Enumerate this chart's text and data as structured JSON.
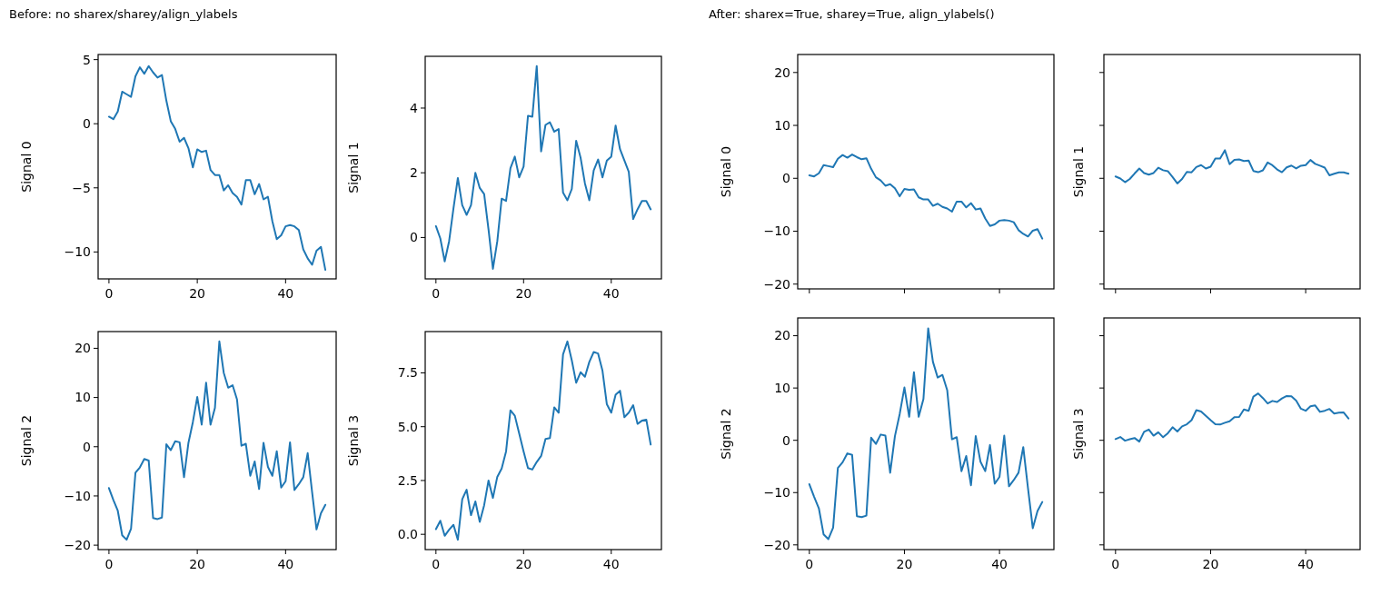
{
  "chart_data": [
    {
      "type": "line",
      "title": "Before: no sharex/sharey/align_ylabels",
      "ylabel": "Signal 0",
      "x": [
        0,
        1,
        2,
        3,
        4,
        5,
        6,
        7,
        8,
        9,
        10,
        11,
        12,
        13,
        14,
        15,
        16,
        17,
        18,
        19,
        20,
        21,
        22,
        23,
        24,
        25,
        26,
        27,
        28,
        29,
        30,
        31,
        32,
        33,
        34,
        35,
        36,
        37,
        38,
        39,
        40,
        41,
        42,
        43,
        44,
        45,
        46,
        47,
        48,
        49
      ],
      "xlim": [
        -2.45,
        51.45
      ],
      "xticks": [
        0,
        20,
        40
      ],
      "ylim": [
        -12.1,
        5.4
      ],
      "yticks": [
        {
          "value": -10,
          "label": "−10"
        },
        {
          "value": -5,
          "label": "−5"
        },
        0,
        5
      ],
      "series": [
        {
          "color": "#1f77b4",
          "values": [
            0.55,
            0.36,
            0.95,
            2.5,
            2.3,
            2.1,
            3.7,
            4.4,
            3.9,
            4.5,
            4.0,
            3.6,
            3.8,
            1.8,
            0.2,
            -0.4,
            -1.4,
            -1.1,
            -1.9,
            -3.4,
            -2.0,
            -2.2,
            -2.1,
            -3.6,
            -4.0,
            -4.0,
            -5.2,
            -4.8,
            -5.4,
            -5.7,
            -6.3,
            -4.4,
            -4.4,
            -5.5,
            -4.7,
            -5.9,
            -5.7,
            -7.6,
            -9.0,
            -8.7,
            -8.0,
            -7.9,
            -8.0,
            -8.3,
            -9.8,
            -10.5,
            -11.0,
            -9.9,
            -9.6,
            -11.4
          ]
        }
      ]
    },
    {
      "type": "line",
      "ylabel": "Signal 1",
      "x": [
        0,
        1,
        2,
        3,
        4,
        5,
        6,
        7,
        8,
        9,
        10,
        11,
        12,
        13,
        14,
        15,
        16,
        17,
        18,
        19,
        20,
        21,
        22,
        23,
        24,
        25,
        26,
        27,
        28,
        29,
        30,
        31,
        32,
        33,
        34,
        35,
        36,
        37,
        38,
        39,
        40,
        41,
        42,
        43,
        44,
        45,
        46,
        47,
        48,
        49
      ],
      "xlim": [
        -2.45,
        51.45
      ],
      "xticks": [
        0,
        20,
        40
      ],
      "ylim": [
        -1.28,
        5.6
      ],
      "yticks": [
        0,
        2,
        4
      ],
      "series": [
        {
          "color": "#1f77b4",
          "values": [
            0.35,
            -0.03,
            -0.74,
            -0.12,
            0.9,
            1.84,
            1.0,
            0.7,
            1.0,
            2.0,
            1.53,
            1.34,
            0.25,
            -0.97,
            -0.12,
            1.2,
            1.13,
            2.14,
            2.5,
            1.86,
            2.19,
            3.76,
            3.73,
            5.3,
            2.66,
            3.48,
            3.56,
            3.27,
            3.35,
            1.39,
            1.15,
            1.5,
            2.99,
            2.47,
            1.67,
            1.15,
            2.07,
            2.41,
            1.86,
            2.38,
            2.5,
            3.46,
            2.73,
            2.38,
            2.03,
            0.57,
            0.87,
            1.13,
            1.13,
            0.87
          ]
        }
      ]
    },
    {
      "type": "line",
      "ylabel": "Signal 2",
      "x": [
        0,
        1,
        2,
        3,
        4,
        5,
        6,
        7,
        8,
        9,
        10,
        11,
        12,
        13,
        14,
        15,
        16,
        17,
        18,
        19,
        20,
        21,
        22,
        23,
        24,
        25,
        26,
        27,
        28,
        29,
        30,
        31,
        32,
        33,
        34,
        35,
        36,
        37,
        38,
        39,
        40,
        41,
        42,
        43,
        44,
        45,
        46,
        47,
        48,
        49
      ],
      "xlim": [
        -2.45,
        51.45
      ],
      "xticks": [
        0,
        20,
        40
      ],
      "ylim": [
        -20.9,
        23.4
      ],
      "yticks": [
        {
          "value": -20,
          "label": "−20"
        },
        {
          "value": -10,
          "label": "−10"
        },
        0,
        10,
        20
      ],
      "series": [
        {
          "color": "#1f77b4",
          "values": [
            -8.4,
            -10.8,
            -13.0,
            -18.0,
            -18.9,
            -16.7,
            -5.3,
            -4.2,
            -2.5,
            -2.8,
            -14.5,
            -14.7,
            -14.4,
            0.5,
            -0.7,
            1.1,
            0.9,
            -6.2,
            0.8,
            5.0,
            10.1,
            4.5,
            13.0,
            4.5,
            7.9,
            21.4,
            15.0,
            12.0,
            12.5,
            9.6,
            0.2,
            0.6,
            -5.9,
            -3.0,
            -8.6,
            0.8,
            -4.1,
            -5.9,
            -0.9,
            -8.3,
            -7.0,
            0.9,
            -8.8,
            -7.6,
            -6.2,
            -1.3,
            -9.2,
            -16.8,
            -13.5,
            -11.8
          ]
        }
      ]
    },
    {
      "type": "line",
      "ylabel": "Signal 3",
      "x": [
        0,
        1,
        2,
        3,
        4,
        5,
        6,
        7,
        8,
        9,
        10,
        11,
        12,
        13,
        14,
        15,
        16,
        17,
        18,
        19,
        20,
        21,
        22,
        23,
        24,
        25,
        26,
        27,
        28,
        29,
        30,
        31,
        32,
        33,
        34,
        35,
        36,
        37,
        38,
        39,
        40,
        41,
        42,
        43,
        44,
        45,
        46,
        47,
        48,
        49
      ],
      "xlim": [
        -2.45,
        51.45
      ],
      "xticks": [
        0,
        20,
        40
      ],
      "ylim": [
        -0.71,
        9.42
      ],
      "yticks": [
        {
          "value": 0,
          "label": "0.0"
        },
        2.5,
        {
          "value": 5,
          "label": "5.0"
        },
        7.5
      ],
      "series": [
        {
          "color": "#1f77b4",
          "values": [
            0.24,
            0.63,
            -0.07,
            0.21,
            0.44,
            -0.25,
            1.63,
            2.07,
            0.89,
            1.53,
            0.58,
            1.35,
            2.5,
            1.69,
            2.67,
            3.06,
            3.85,
            5.76,
            5.51,
            4.68,
            3.85,
            3.08,
            3.01,
            3.36,
            3.64,
            4.43,
            4.47,
            5.9,
            5.65,
            8.36,
            8.96,
            8.08,
            7.04,
            7.53,
            7.32,
            8.01,
            8.47,
            8.4,
            7.6,
            6.04,
            5.65,
            6.49,
            6.67,
            5.44,
            5.65,
            6.0,
            5.13,
            5.28,
            5.33,
            4.17
          ]
        }
      ]
    },
    {
      "type": "line",
      "title": "After: sharex=True, sharey=True, align_ylabels()",
      "ylabel": "Signal 0",
      "tick_labels": "y",
      "x": [
        0,
        1,
        2,
        3,
        4,
        5,
        6,
        7,
        8,
        9,
        10,
        11,
        12,
        13,
        14,
        15,
        16,
        17,
        18,
        19,
        20,
        21,
        22,
        23,
        24,
        25,
        26,
        27,
        28,
        29,
        30,
        31,
        32,
        33,
        34,
        35,
        36,
        37,
        38,
        39,
        40,
        41,
        42,
        43,
        44,
        45,
        46,
        47,
        48,
        49
      ],
      "xlim": [
        -2.45,
        51.45
      ],
      "xticks": [
        0,
        20,
        40
      ],
      "ylim": [
        -20.9,
        23.4
      ],
      "yticks": [
        {
          "value": -20,
          "label": "−20"
        },
        {
          "value": -10,
          "label": "−10"
        },
        0,
        10,
        20
      ],
      "series": [
        {
          "color": "#1f77b4",
          "values": [
            0.55,
            0.36,
            0.95,
            2.5,
            2.3,
            2.1,
            3.7,
            4.4,
            3.9,
            4.5,
            4.0,
            3.6,
            3.8,
            1.8,
            0.2,
            -0.4,
            -1.4,
            -1.1,
            -1.9,
            -3.4,
            -2.0,
            -2.2,
            -2.1,
            -3.6,
            -4.0,
            -4.0,
            -5.2,
            -4.8,
            -5.4,
            -5.7,
            -6.3,
            -4.4,
            -4.4,
            -5.5,
            -4.7,
            -5.9,
            -5.7,
            -7.6,
            -9.0,
            -8.7,
            -8.0,
            -7.9,
            -8.0,
            -8.3,
            -9.8,
            -10.5,
            -11.0,
            -9.9,
            -9.6,
            -11.4
          ]
        }
      ]
    },
    {
      "type": "line",
      "ylabel": "Signal 1",
      "tick_labels": false,
      "x": [
        0,
        1,
        2,
        3,
        4,
        5,
        6,
        7,
        8,
        9,
        10,
        11,
        12,
        13,
        14,
        15,
        16,
        17,
        18,
        19,
        20,
        21,
        22,
        23,
        24,
        25,
        26,
        27,
        28,
        29,
        30,
        31,
        32,
        33,
        34,
        35,
        36,
        37,
        38,
        39,
        40,
        41,
        42,
        43,
        44,
        45,
        46,
        47,
        48,
        49
      ],
      "xlim": [
        -2.45,
        51.45
      ],
      "xticks": [
        0,
        20,
        40
      ],
      "ylim": [
        -20.9,
        23.4
      ],
      "yticks": [
        -20,
        -10,
        0,
        10,
        20
      ],
      "series": [
        {
          "color": "#1f77b4",
          "values": [
            0.35,
            -0.03,
            -0.74,
            -0.12,
            0.9,
            1.84,
            1.0,
            0.7,
            1.0,
            2.0,
            1.53,
            1.34,
            0.25,
            -0.97,
            -0.12,
            1.2,
            1.13,
            2.14,
            2.5,
            1.86,
            2.19,
            3.76,
            3.73,
            5.3,
            2.66,
            3.48,
            3.56,
            3.27,
            3.35,
            1.39,
            1.15,
            1.5,
            2.99,
            2.47,
            1.67,
            1.15,
            2.07,
            2.41,
            1.86,
            2.38,
            2.5,
            3.46,
            2.73,
            2.38,
            2.03,
            0.57,
            0.87,
            1.13,
            1.13,
            0.87
          ]
        }
      ]
    },
    {
      "type": "line",
      "ylabel": "Signal 2",
      "x": [
        0,
        1,
        2,
        3,
        4,
        5,
        6,
        7,
        8,
        9,
        10,
        11,
        12,
        13,
        14,
        15,
        16,
        17,
        18,
        19,
        20,
        21,
        22,
        23,
        24,
        25,
        26,
        27,
        28,
        29,
        30,
        31,
        32,
        33,
        34,
        35,
        36,
        37,
        38,
        39,
        40,
        41,
        42,
        43,
        44,
        45,
        46,
        47,
        48,
        49
      ],
      "xlim": [
        -2.45,
        51.45
      ],
      "xticks": [
        0,
        20,
        40
      ],
      "ylim": [
        -20.9,
        23.4
      ],
      "yticks": [
        {
          "value": -20,
          "label": "−20"
        },
        {
          "value": -10,
          "label": "−10"
        },
        0,
        10,
        20
      ],
      "series": [
        {
          "color": "#1f77b4",
          "values": [
            -8.4,
            -10.8,
            -13.0,
            -18.0,
            -18.9,
            -16.7,
            -5.3,
            -4.2,
            -2.5,
            -2.8,
            -14.5,
            -14.7,
            -14.4,
            0.5,
            -0.7,
            1.1,
            0.9,
            -6.2,
            0.8,
            5.0,
            10.1,
            4.5,
            13.0,
            4.5,
            7.9,
            21.4,
            15.0,
            12.0,
            12.5,
            9.6,
            0.2,
            0.6,
            -5.9,
            -3.0,
            -8.6,
            0.8,
            -4.1,
            -5.9,
            -0.9,
            -8.3,
            -7.0,
            0.9,
            -8.8,
            -7.6,
            -6.2,
            -1.3,
            -9.2,
            -16.8,
            -13.5,
            -11.8
          ]
        }
      ]
    },
    {
      "type": "line",
      "ylabel": "Signal 3",
      "tick_labels": "x",
      "x": [
        0,
        1,
        2,
        3,
        4,
        5,
        6,
        7,
        8,
        9,
        10,
        11,
        12,
        13,
        14,
        15,
        16,
        17,
        18,
        19,
        20,
        21,
        22,
        23,
        24,
        25,
        26,
        27,
        28,
        29,
        30,
        31,
        32,
        33,
        34,
        35,
        36,
        37,
        38,
        39,
        40,
        41,
        42,
        43,
        44,
        45,
        46,
        47,
        48,
        49
      ],
      "xlim": [
        -2.45,
        51.45
      ],
      "xticks": [
        0,
        20,
        40
      ],
      "ylim": [
        -20.9,
        23.4
      ],
      "yticks": [
        -20,
        -10,
        0,
        10,
        20
      ],
      "series": [
        {
          "color": "#1f77b4",
          "values": [
            0.24,
            0.63,
            -0.07,
            0.21,
            0.44,
            -0.25,
            1.63,
            2.07,
            0.89,
            1.53,
            0.58,
            1.35,
            2.5,
            1.69,
            2.67,
            3.06,
            3.85,
            5.76,
            5.51,
            4.68,
            3.85,
            3.08,
            3.01,
            3.36,
            3.64,
            4.43,
            4.47,
            5.9,
            5.65,
            8.36,
            8.96,
            8.08,
            7.04,
            7.53,
            7.32,
            8.01,
            8.47,
            8.4,
            7.6,
            6.04,
            5.65,
            6.49,
            6.67,
            5.44,
            5.65,
            6.0,
            5.13,
            5.28,
            5.33,
            4.17
          ]
        }
      ]
    }
  ]
}
